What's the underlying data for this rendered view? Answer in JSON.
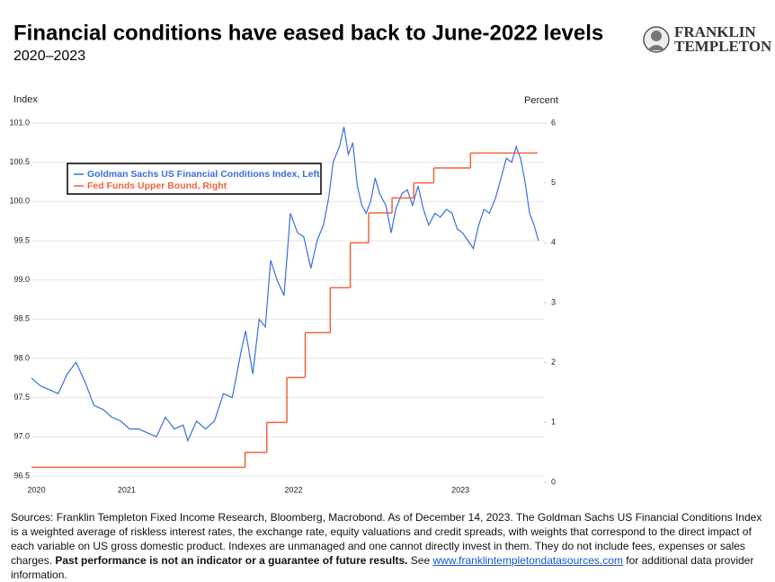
{
  "chart_data": {
    "type": "line",
    "title": "Financial conditions have eased back to June-2022 levels",
    "subtitle": "2020–2023",
    "ylabel": "Index",
    "y2label": "Percent",
    "xlim": [
      2020.93,
      2024.0
    ],
    "xticks": [
      {
        "value": 2020.96,
        "label": "2020"
      },
      {
        "value": 2021.5,
        "label": "2021"
      },
      {
        "value": 2022.5,
        "label": "2022"
      },
      {
        "value": 2023.5,
        "label": "2023"
      }
    ],
    "ylim": [
      96.5,
      101.0
    ],
    "yticks": [
      96.5,
      {
        "value": 97,
        "label": "97.0"
      },
      97.5,
      {
        "value": 98,
        "label": "98.0"
      },
      98.5,
      {
        "value": 99,
        "label": "99.0"
      },
      99.5,
      {
        "value": 100,
        "label": "100.0"
      },
      100.5,
      {
        "value": 101,
        "label": "101.0"
      }
    ],
    "y2lim": [
      0,
      6
    ],
    "y2ticks": [
      0,
      1,
      2,
      3,
      4,
      5,
      6
    ],
    "grid": true,
    "legend": "upper left",
    "series": [
      {
        "name": "Goldman Sachs US Financial Conditions Index, Left",
        "color": "#3a6ee0",
        "x": [
          2020.93,
          2020.983,
          2021.037,
          2021.09,
          2021.144,
          2021.197,
          2021.251,
          2021.304,
          2021.358,
          2021.411,
          2021.465,
          2021.518,
          2021.572,
          2021.625,
          2021.679,
          2021.732,
          2021.786,
          2021.839,
          2021.866,
          2021.919,
          2021.973,
          2022.026,
          2022.08,
          2022.133,
          2022.187,
          2022.213,
          2022.256,
          2022.294,
          2022.331,
          2022.363,
          2022.401,
          2022.443,
          2022.481,
          2022.524,
          2022.561,
          2022.604,
          2022.641,
          2022.679,
          2022.711,
          2022.737,
          2022.775,
          2022.802,
          2022.828,
          2022.855,
          2022.882,
          2022.909,
          2022.935,
          2022.962,
          2022.989,
          2023.016,
          2023.053,
          2023.085,
          2023.112,
          2023.149,
          2023.181,
          2023.213,
          2023.246,
          2023.278,
          2023.31,
          2023.347,
          2023.379,
          2023.417,
          2023.449,
          2023.481,
          2023.513,
          2023.545,
          2023.577,
          2023.609,
          2023.641,
          2023.673,
          2023.711,
          2023.743,
          2023.775,
          2023.807,
          2023.834,
          2023.86,
          2023.887,
          2023.914,
          2023.941,
          2023.967
        ],
        "values": [
          97.75,
          97.65,
          97.6,
          97.55,
          97.8,
          97.95,
          97.7,
          97.4,
          97.35,
          97.25,
          97.2,
          97.1,
          97.1,
          97.05,
          97.0,
          97.25,
          97.1,
          97.15,
          96.95,
          97.2,
          97.1,
          97.2,
          97.55,
          97.5,
          98.1,
          98.35,
          97.8,
          98.5,
          98.4,
          99.25,
          99.0,
          98.8,
          99.85,
          99.6,
          99.55,
          99.15,
          99.5,
          99.7,
          100.05,
          100.5,
          100.7,
          100.95,
          100.6,
          100.75,
          100.2,
          99.95,
          99.85,
          100.0,
          100.3,
          100.1,
          99.95,
          99.6,
          99.9,
          100.1,
          100.15,
          99.95,
          100.2,
          99.9,
          99.7,
          99.85,
          99.8,
          99.9,
          99.85,
          99.65,
          99.6,
          99.5,
          99.4,
          99.7,
          99.9,
          99.85,
          100.05,
          100.3,
          100.55,
          100.5,
          100.7,
          100.55,
          100.25,
          99.85,
          99.7,
          99.5
        ]
      },
      {
        "name": "Fed Funds Upper Bound, Right",
        "color": "#f0643c",
        "axis": "y2",
        "step": true,
        "x": [
          2020.93,
          2022.21,
          2022.34,
          2022.46,
          2022.57,
          2022.72,
          2022.84,
          2022.95,
          2023.09,
          2023.22,
          2023.34,
          2023.56,
          2023.96
        ],
        "values": [
          0.25,
          0.5,
          1.0,
          1.75,
          2.5,
          3.25,
          4.0,
          4.5,
          4.75,
          5.0,
          5.25,
          5.5,
          5.5
        ]
      }
    ]
  },
  "logo": {
    "line1": "FRANKLIN",
    "line2": "TEMPLETON"
  },
  "footnote": {
    "text": "Sources: Franklin Templeton Fixed Income Research, Bloomberg, Macrobond. As of December 14, 2023. The Goldman Sachs US Financial Conditions Index is a weighted average of riskless interest rates, the exchange rate, equity valuations and credit spreads, with weights that correspond to the direct impact of each variable on US gross domestic product. Indexes are unmanaged and one cannot directly invest in them. They do not include fees, expenses or sales charges. ",
    "bold": "Past performance is not an indicator or a guarantee of future results.",
    "see": " See ",
    "link": "www.franklintempletondatasources.com",
    "after": " for additional data provider information."
  }
}
